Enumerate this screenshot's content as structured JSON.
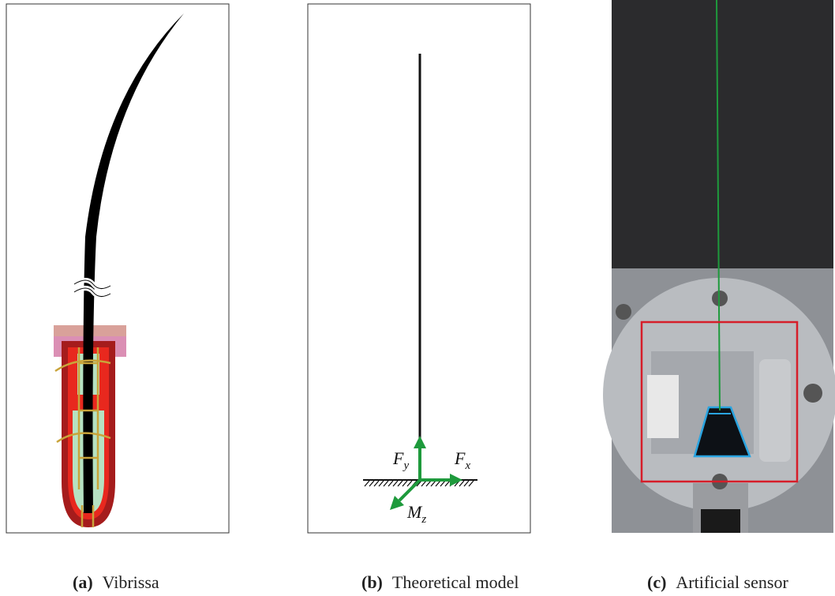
{
  "panels": [
    {
      "letter": "(a)",
      "caption": "Vibrissa"
    },
    {
      "letter": "(b)",
      "caption": "Theoretical model",
      "labels": [
        {
          "symbol": "F",
          "sub": "y"
        },
        {
          "symbol": "F",
          "sub": "x"
        },
        {
          "symbol": "M",
          "sub": "z"
        }
      ]
    },
    {
      "letter": "(c)",
      "caption": "Artificial sensor"
    }
  ]
}
